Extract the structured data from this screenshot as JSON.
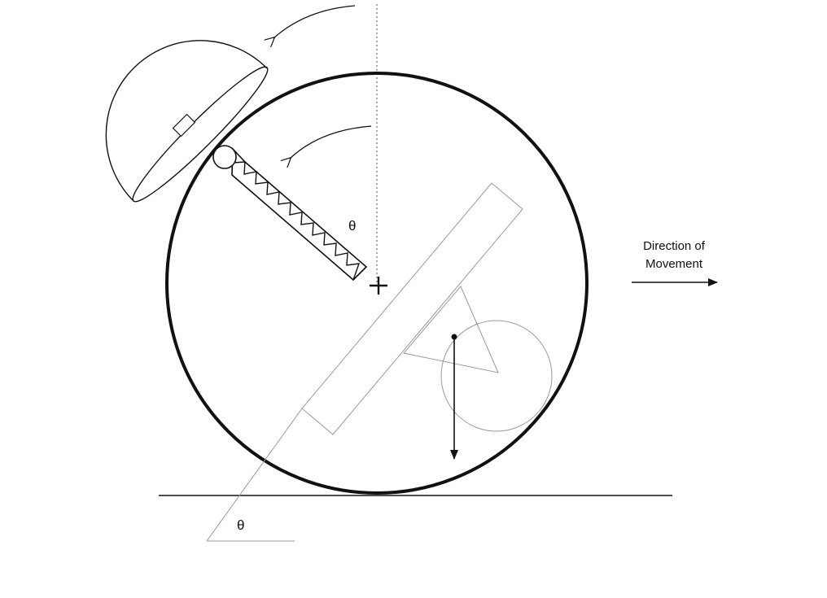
{
  "labels": {
    "theta_top": "θ",
    "theta_bottom": "θ",
    "direction_line1": "Direction of",
    "direction_line2": "Movement"
  },
  "colors": {
    "ink": "#111111",
    "faint_ink": "#9a9a9a",
    "background": "#ffffff"
  }
}
